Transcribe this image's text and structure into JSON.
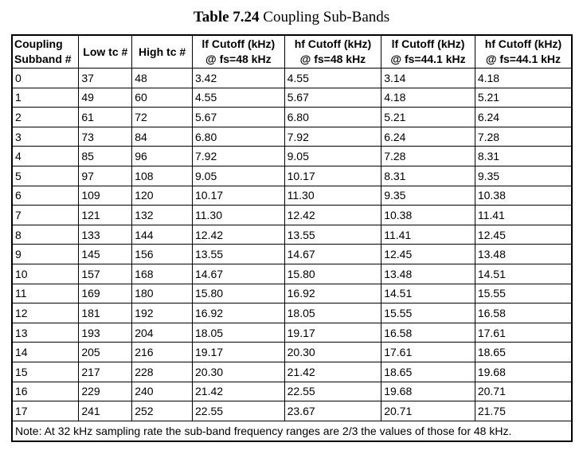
{
  "caption": {
    "label": "Table 7.24",
    "title": "Coupling Sub-Bands"
  },
  "table": {
    "headers": [
      [
        "Coupling",
        "Subband #"
      ],
      [
        "Low tc #",
        ""
      ],
      [
        "High tc #",
        ""
      ],
      [
        "lf Cutoff (kHz)",
        "@ fs=48 kHz"
      ],
      [
        "hf Cutoff (kHz)",
        "@ fs=48 kHz"
      ],
      [
        "lf Cutoff (kHz)",
        "@ fs=44.1 kHz"
      ],
      [
        "hf Cutoff (kHz)",
        "@ fs=44.1 kHz"
      ]
    ],
    "rows": [
      [
        "0",
        "37",
        "48",
        "3.42",
        "4.55",
        "3.14",
        "4.18"
      ],
      [
        "1",
        "49",
        "60",
        "4.55",
        "5.67",
        "4.18",
        "5.21"
      ],
      [
        "2",
        "61",
        "72",
        "5.67",
        "6.80",
        "5.21",
        "6.24"
      ],
      [
        "3",
        "73",
        "84",
        "6.80",
        "7.92",
        "6.24",
        "7.28"
      ],
      [
        "4",
        "85",
        "96",
        "7.92",
        "9.05",
        "7.28",
        "8.31"
      ],
      [
        "5",
        "97",
        "108",
        "9.05",
        "10.17",
        "8.31",
        "9.35"
      ],
      [
        "6",
        "109",
        "120",
        "10.17",
        "11.30",
        "9.35",
        "10.38"
      ],
      [
        "7",
        "121",
        "132",
        "11.30",
        "12.42",
        "10.38",
        "11.41"
      ],
      [
        "8",
        "133",
        "144",
        "12.42",
        "13.55",
        "11.41",
        "12.45"
      ],
      [
        "9",
        "145",
        "156",
        "13.55",
        "14.67",
        "12.45",
        "13.48"
      ],
      [
        "10",
        "157",
        "168",
        "14.67",
        "15.80",
        "13.48",
        "14.51"
      ],
      [
        "11",
        "169",
        "180",
        "15.80",
        "16.92",
        "14.51",
        "15.55"
      ],
      [
        "12",
        "181",
        "192",
        "16.92",
        "18.05",
        "15.55",
        "16.58"
      ],
      [
        "13",
        "193",
        "204",
        "18.05",
        "19.17",
        "16.58",
        "17.61"
      ],
      [
        "14",
        "205",
        "216",
        "19.17",
        "20.30",
        "17.61",
        "18.65"
      ],
      [
        "15",
        "217",
        "228",
        "20.30",
        "21.42",
        "18.65",
        "19.68"
      ],
      [
        "16",
        "229",
        "240",
        "21.42",
        "22.55",
        "19.68",
        "20.71"
      ],
      [
        "17",
        "241",
        "252",
        "22.55",
        "23.67",
        "20.71",
        "21.75"
      ]
    ],
    "note": "Note: At 32 kHz sampling rate the sub-band frequency ranges are 2/3 the values of those for 48 kHz."
  }
}
